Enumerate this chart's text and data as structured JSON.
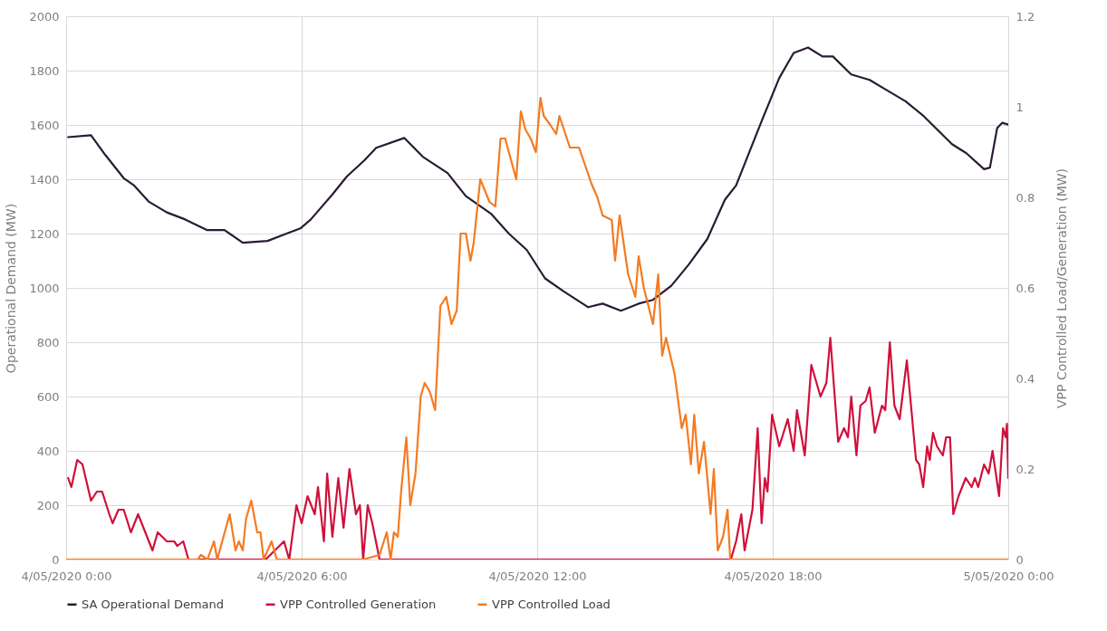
{
  "chart_data": {
    "type": "line",
    "ylabel": "Operational Demand (MW)",
    "y2label": "VPP Controlled Load/Generation (MW)",
    "xlim": [
      "2020-05-04T00:00",
      "2020-05-05T00:00"
    ],
    "xticks": [
      {
        "value": "2020-05-04T00:00",
        "label": "4/05/2020 0:00"
      },
      {
        "value": "2020-05-04T06:00",
        "label": "4/05/2020 6:00"
      },
      {
        "value": "2020-05-04T12:00",
        "label": "4/05/2020 12:00"
      },
      {
        "value": "2020-05-04T18:00",
        "label": "4/05/2020 18:00"
      },
      {
        "value": "2020-05-05T00:00",
        "label": "5/05/2020 0:00"
      }
    ],
    "ylim": [
      0,
      2000
    ],
    "yticks": [
      0,
      200,
      400,
      600,
      800,
      1000,
      1200,
      1400,
      1600,
      1800,
      2000
    ],
    "y2lim": [
      0,
      1.2
    ],
    "y2ticks": [
      0,
      0.2,
      0.4,
      0.6,
      0.8,
      1,
      1.2
    ],
    "grid": true,
    "legend": "bottom",
    "series": [
      {
        "name": "SA Operational Demand",
        "color": "#2a1b33",
        "x": [
          "2020-05-04T00:03",
          "2020-05-04T00:38",
          "2020-05-04T01:00",
          "2020-05-04T01:28",
          "2020-05-04T01:44",
          "2020-05-04T02:06",
          "2020-05-04T02:34",
          "2020-05-04T03:02",
          "2020-05-04T03:35",
          "2020-05-04T04:02",
          "2020-05-04T04:30",
          "2020-05-04T05:08",
          "2020-05-04T05:36",
          "2020-05-04T05:58",
          "2020-05-04T06:14",
          "2020-05-04T06:47",
          "2020-05-04T07:09",
          "2020-05-04T07:36",
          "2020-05-04T07:54",
          "2020-05-04T08:37",
          "2020-05-04T09:05",
          "2020-05-04T09:43",
          "2020-05-04T10:11",
          "2020-05-04T10:50",
          "2020-05-04T11:17",
          "2020-05-04T11:44",
          "2020-05-04T12:12",
          "2020-05-04T12:40",
          "2020-05-04T13:18",
          "2020-05-04T13:40",
          "2020-05-04T14:08",
          "2020-05-04T14:35",
          "2020-05-04T14:57",
          "2020-05-04T15:25",
          "2020-05-04T15:52",
          "2020-05-04T16:20",
          "2020-05-04T16:47",
          "2020-05-04T17:04",
          "2020-05-04T17:43",
          "2020-05-04T18:10",
          "2020-05-04T18:32",
          "2020-05-04T18:54",
          "2020-05-04T19:16",
          "2020-05-04T19:32",
          "2020-05-04T20:00",
          "2020-05-04T20:28",
          "2020-05-04T20:55",
          "2020-05-04T21:23",
          "2020-05-04T21:50",
          "2020-05-04T22:34",
          "2020-05-04T22:56",
          "2020-05-04T23:23",
          "2020-05-04T23:32",
          "2020-05-04T23:43",
          "2020-05-04T23:51",
          "2020-05-05T00:00"
        ],
        "values": [
          1555,
          1562,
          1489,
          1404,
          1377,
          1318,
          1278,
          1252,
          1213,
          1213,
          1166,
          1173,
          1199,
          1219,
          1252,
          1344,
          1410,
          1470,
          1516,
          1552,
          1483,
          1423,
          1338,
          1272,
          1199,
          1140,
          1035,
          988,
          929,
          942,
          916,
          942,
          956,
          1008,
          1087,
          1180,
          1325,
          1377,
          1614,
          1773,
          1865,
          1885,
          1852,
          1852,
          1786,
          1766,
          1727,
          1687,
          1634,
          1529,
          1496,
          1437,
          1443,
          1588,
          1608,
          1601
        ]
      },
      {
        "name": "VPP Controlled Generation",
        "color": "#d0103a",
        "axis": "y2",
        "x": [
          "2020-05-04T00:03",
          "2020-05-04T00:08",
          "2020-05-04T00:17",
          "2020-05-04T00:25",
          "2020-05-04T00:38",
          "2020-05-04T00:47",
          "2020-05-04T00:55",
          "2020-05-04T01:06",
          "2020-05-04T01:11",
          "2020-05-04T01:20",
          "2020-05-04T01:28",
          "2020-05-04T01:39",
          "2020-05-04T01:50",
          "2020-05-04T02:01",
          "2020-05-04T02:12",
          "2020-05-04T02:20",
          "2020-05-04T02:34",
          "2020-05-04T02:45",
          "2020-05-04T02:50",
          "2020-05-04T02:59",
          "2020-05-04T03:07",
          "2020-05-04T03:18",
          "2020-05-04T05:05",
          "2020-05-04T05:33",
          "2020-05-04T05:41",
          "2020-05-04T05:52",
          "2020-05-04T06:00",
          "2020-05-04T06:09",
          "2020-05-04T06:20",
          "2020-05-04T06:25",
          "2020-05-04T06:34",
          "2020-05-04T06:39",
          "2020-05-04T06:47",
          "2020-05-04T06:56",
          "2020-05-04T07:04",
          "2020-05-04T07:13",
          "2020-05-04T07:23",
          "2020-05-04T07:29",
          "2020-05-04T07:34",
          "2020-05-04T07:41",
          "2020-05-04T07:48",
          "2020-05-04T07:59",
          "2020-05-04T16:56",
          "2020-05-04T17:04",
          "2020-05-04T17:12",
          "2020-05-04T17:17",
          "2020-05-04T17:29",
          "2020-05-04T17:37",
          "2020-05-04T17:43",
          "2020-05-04T17:48",
          "2020-05-04T17:52",
          "2020-05-04T17:59",
          "2020-05-04T18:10",
          "2020-05-04T18:23",
          "2020-05-04T18:32",
          "2020-05-04T18:37",
          "2020-05-04T18:49",
          "2020-05-04T18:59",
          "2020-05-04T19:13",
          "2020-05-04T19:22",
          "2020-05-04T19:28",
          "2020-05-04T19:40",
          "2020-05-04T19:49",
          "2020-05-04T19:55",
          "2020-05-04T20:00",
          "2020-05-04T20:08",
          "2020-05-04T20:14",
          "2020-05-04T20:22",
          "2020-05-04T20:28",
          "2020-05-04T20:36",
          "2020-05-04T20:47",
          "2020-05-04T20:52",
          "2020-05-04T20:59",
          "2020-05-04T21:06",
          "2020-05-04T21:14",
          "2020-05-04T21:25",
          "2020-05-04T21:39",
          "2020-05-04T21:44",
          "2020-05-04T21:50",
          "2020-05-04T21:56",
          "2020-05-04T22:00",
          "2020-05-04T22:05",
          "2020-05-04T22:11",
          "2020-05-04T22:20",
          "2020-05-04T22:25",
          "2020-05-04T22:31",
          "2020-05-04T22:36",
          "2020-05-04T22:44",
          "2020-05-04T22:55",
          "2020-05-04T23:04",
          "2020-05-04T23:09",
          "2020-05-04T23:14",
          "2020-05-04T23:23",
          "2020-05-04T23:30",
          "2020-05-04T23:36",
          "2020-05-04T23:46",
          "2020-05-04T23:52",
          "2020-05-04T23:56",
          "2020-05-04T23:58",
          "2020-05-05T00:00"
        ],
        "values": [
          0.18,
          0.16,
          0.22,
          0.21,
          0.13,
          0.15,
          0.15,
          0.1,
          0.08,
          0.11,
          0.11,
          0.06,
          0.1,
          0.06,
          0.02,
          0.06,
          0.04,
          0.04,
          0.03,
          0.04,
          0,
          0,
          0,
          0.04,
          0,
          0.12,
          0.08,
          0.14,
          0.1,
          0.16,
          0.04,
          0.19,
          0.05,
          0.18,
          0.07,
          0.2,
          0.1,
          0.12,
          0,
          0.12,
          0.08,
          0,
          0,
          0.04,
          0.1,
          0.02,
          0.11,
          0.29,
          0.08,
          0.18,
          0.15,
          0.32,
          0.25,
          0.31,
          0.24,
          0.33,
          0.23,
          0.43,
          0.36,
          0.39,
          0.49,
          0.26,
          0.29,
          0.27,
          0.36,
          0.23,
          0.34,
          0.35,
          0.38,
          0.28,
          0.34,
          0.33,
          0.48,
          0.34,
          0.31,
          0.44,
          0.22,
          0.21,
          0.16,
          0.25,
          0.22,
          0.28,
          0.25,
          0.23,
          0.27,
          0.27,
          0.1,
          0.14,
          0.18,
          0.16,
          0.18,
          0.16,
          0.21,
          0.19,
          0.24,
          0.14,
          0.29,
          0.27,
          0.3,
          0.18
        ]
      },
      {
        "name": "VPP Controlled Load",
        "color": "#f47b20",
        "axis": "y2",
        "x": [
          "2020-05-04T00:00",
          "2020-05-04T03:21",
          "2020-05-04T03:26",
          "2020-05-04T03:36",
          "2020-05-04T03:46",
          "2020-05-04T03:51",
          "2020-05-04T04:10",
          "2020-05-04T04:19",
          "2020-05-04T04:24",
          "2020-05-04T04:30",
          "2020-05-04T04:35",
          "2020-05-04T04:43",
          "2020-05-04T04:52",
          "2020-05-04T04:57",
          "2020-05-04T05:02",
          "2020-05-04T05:14",
          "2020-05-04T05:22",
          "2020-05-04T07:34",
          "2020-05-04T07:59",
          "2020-05-04T08:10",
          "2020-05-04T08:16",
          "2020-05-04T08:21",
          "2020-05-04T08:27",
          "2020-05-04T08:32",
          "2020-05-04T08:40",
          "2020-05-04T08:46",
          "2020-05-04T08:54",
          "2020-05-04T09:02",
          "2020-05-04T09:08",
          "2020-05-04T09:16",
          "2020-05-04T09:24",
          "2020-05-04T09:32",
          "2020-05-04T09:41",
          "2020-05-04T09:49",
          "2020-05-04T09:57",
          "2020-05-04T10:03",
          "2020-05-04T10:11",
          "2020-05-04T10:18",
          "2020-05-04T10:23",
          "2020-05-04T10:33",
          "2020-05-04T10:47",
          "2020-05-04T10:56",
          "2020-05-04T11:04",
          "2020-05-04T11:11",
          "2020-05-04T11:28",
          "2020-05-04T11:35",
          "2020-05-04T11:42",
          "2020-05-04T11:50",
          "2020-05-04T11:58",
          "2020-05-04T12:05",
          "2020-05-04T12:10",
          "2020-05-04T12:20",
          "2020-05-04T12:29",
          "2020-05-04T12:34",
          "2020-05-04T12:50",
          "2020-05-04T13:04",
          "2020-05-04T13:23",
          "2020-05-04T13:32",
          "2020-05-04T13:40",
          "2020-05-04T13:54",
          "2020-05-04T13:59",
          "2020-05-04T14:06",
          "2020-05-04T14:19",
          "2020-05-04T14:30",
          "2020-05-04T14:35",
          "2020-05-04T14:43",
          "2020-05-04T14:57",
          "2020-05-04T15:05",
          "2020-05-04T15:11",
          "2020-05-04T15:17",
          "2020-05-04T15:30",
          "2020-05-04T15:41",
          "2020-05-04T15:47",
          "2020-05-04T15:55",
          "2020-05-04T16:00",
          "2020-05-04T16:07",
          "2020-05-04T16:15",
          "2020-05-04T16:25",
          "2020-05-04T16:30",
          "2020-05-04T16:36",
          "2020-05-04T16:44",
          "2020-05-04T16:51",
          "2020-05-04T16:55",
          "2020-05-05T00:00"
        ],
        "values": [
          0,
          0,
          0.01,
          0,
          0.04,
          0,
          0.1,
          0.02,
          0.04,
          0.02,
          0.09,
          0.13,
          0.06,
          0.06,
          0,
          0.04,
          0,
          0,
          0.01,
          0.06,
          0,
          0.06,
          0.05,
          0.15,
          0.27,
          0.12,
          0.19,
          0.36,
          0.39,
          0.37,
          0.33,
          0.56,
          0.58,
          0.52,
          0.55,
          0.72,
          0.72,
          0.66,
          0.7,
          0.84,
          0.79,
          0.78,
          0.93,
          0.93,
          0.84,
          0.99,
          0.95,
          0.93,
          0.9,
          1.02,
          0.98,
          0.96,
          0.94,
          0.98,
          0.91,
          0.91,
          0.83,
          0.8,
          0.76,
          0.75,
          0.66,
          0.76,
          0.63,
          0.58,
          0.67,
          0.6,
          0.52,
          0.63,
          0.45,
          0.49,
          0.41,
          0.29,
          0.32,
          0.21,
          0.32,
          0.19,
          0.26,
          0.1,
          0.2,
          0.02,
          0.05,
          0.11,
          0,
          0
        ]
      }
    ]
  }
}
